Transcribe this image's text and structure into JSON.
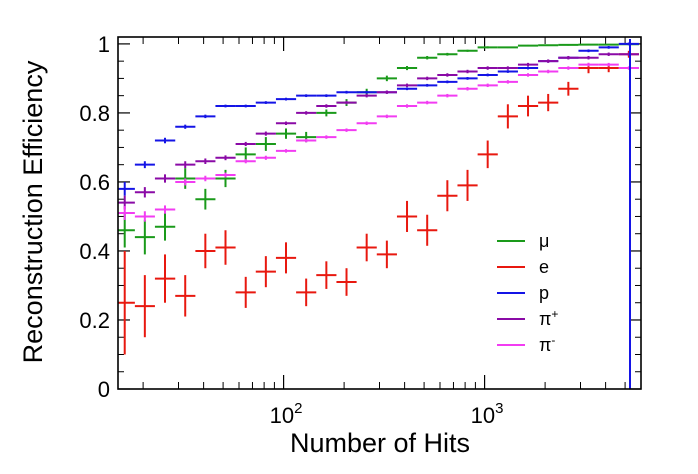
{
  "chart_data": {
    "type": "scatter",
    "title": "",
    "xlabel": "Number of Hits",
    "ylabel": "Reconstruction Efficiency",
    "xscale": "log",
    "xlim": [
      15,
      6000
    ],
    "ylim": [
      0,
      1.02
    ],
    "y_ticks": [
      0,
      0.2,
      0.4,
      0.6,
      0.8,
      1
    ],
    "y_tick_labels": [
      "0",
      "0.2",
      "0.4",
      "0.6",
      "0.8",
      "1"
    ],
    "x_ticks": [
      100,
      1000
    ],
    "x_tick_labels": [
      {
        "base": "10",
        "exp": "2"
      },
      {
        "base": "10",
        "exp": "3"
      }
    ],
    "grid": false,
    "legend_position": "bottom-right",
    "x_centers": [
      16.2,
      20.4,
      25.7,
      32.4,
      40.8,
      51.4,
      64.8,
      81.6,
      102.8,
      129.5,
      163.2,
      205.6,
      259.0,
      326.4,
      411.2,
      518.1,
      652.7,
      822.3,
      1036.0,
      1305.3,
      1644.5,
      2071.9,
      2610.4,
      3288.8,
      4143.5,
      5220.3
    ],
    "x_low": [
      14.4,
      18.2,
      22.9,
      28.9,
      36.4,
      45.8,
      57.7,
      72.7,
      91.6,
      115.4,
      145.4,
      183.2,
      230.8,
      290.8,
      366.4,
      461.6,
      581.6,
      732.8,
      923.2,
      1163.2,
      1465.5,
      1846.3,
      2326.3,
      2930.9,
      3692.7,
      4652.5
    ],
    "x_high": [
      18.2,
      22.9,
      28.9,
      36.4,
      45.8,
      57.7,
      72.7,
      91.6,
      115.4,
      145.4,
      183.2,
      230.8,
      290.8,
      366.4,
      461.6,
      581.6,
      732.8,
      923.2,
      1163.2,
      1465.5,
      1846.3,
      2326.3,
      2930.9,
      3692.7,
      4652.5,
      5861.7
    ],
    "series": [
      {
        "name": "μ",
        "color": "#1a9a1a",
        "values": [
          0.46,
          0.44,
          0.47,
          0.61,
          0.55,
          0.61,
          0.68,
          0.71,
          0.74,
          0.73,
          0.8,
          0.83,
          0.86,
          0.9,
          0.93,
          0.96,
          0.97,
          0.98,
          0.99,
          0.99,
          0.995,
          0.996,
          0.997,
          0.998,
          0.998,
          0.999
        ],
        "errors": [
          0.05,
          0.05,
          0.04,
          0.03,
          0.03,
          0.025,
          0.02,
          0.02,
          0.015,
          0.015,
          0.01,
          0.01,
          0.01,
          0.008,
          0.006,
          0.005,
          0.004,
          0.003,
          0.003,
          0.002,
          0.002,
          0.002,
          0.002,
          0.002,
          0.002,
          0.002
        ]
      },
      {
        "name": "e",
        "color": "#e8180f",
        "values": [
          0.25,
          0.24,
          0.32,
          0.27,
          0.4,
          0.41,
          0.28,
          0.34,
          0.38,
          0.28,
          0.33,
          0.31,
          0.41,
          0.39,
          0.5,
          0.46,
          0.56,
          0.59,
          0.68,
          0.79,
          0.82,
          0.83,
          0.87,
          0.93,
          0.93,
          0.97
        ],
        "errors": [
          0.15,
          0.09,
          0.07,
          0.06,
          0.05,
          0.05,
          0.045,
          0.045,
          0.045,
          0.04,
          0.04,
          0.04,
          0.04,
          0.04,
          0.045,
          0.045,
          0.045,
          0.045,
          0.04,
          0.035,
          0.03,
          0.025,
          0.02,
          0.015,
          0.012,
          0.01
        ]
      },
      {
        "name": "p",
        "color": "#1414e6",
        "values": [
          0.58,
          0.65,
          0.72,
          0.76,
          0.79,
          0.82,
          0.82,
          0.83,
          0.84,
          0.85,
          0.85,
          0.86,
          0.86,
          0.86,
          0.87,
          0.88,
          0.89,
          0.9,
          0.91,
          0.92,
          0.93,
          0.95,
          0.96,
          0.98,
          0.99,
          1.0
        ],
        "errors": [
          0.02,
          0.01,
          0.008,
          0.006,
          0.005,
          0.004,
          0.004,
          0.004,
          0.004,
          0.004,
          0.004,
          0.004,
          0.004,
          0.004,
          0.004,
          0.004,
          0.004,
          0.004,
          0.004,
          0.004,
          0.004,
          0.004,
          0.004,
          0.004,
          0.004,
          0.004
        ]
      },
      {
        "name": "π+",
        "color": "#8a0aa6",
        "values": [
          0.54,
          0.57,
          0.61,
          0.65,
          0.66,
          0.67,
          0.71,
          0.74,
          0.77,
          0.8,
          0.82,
          0.83,
          0.85,
          0.86,
          0.88,
          0.9,
          0.91,
          0.92,
          0.93,
          0.93,
          0.94,
          0.95,
          0.96,
          0.96,
          0.97,
          0.97
        ],
        "errors": [
          0.02,
          0.015,
          0.012,
          0.01,
          0.008,
          0.007,
          0.006,
          0.006,
          0.005,
          0.005,
          0.005,
          0.005,
          0.005,
          0.005,
          0.005,
          0.005,
          0.005,
          0.005,
          0.005,
          0.005,
          0.005,
          0.005,
          0.005,
          0.005,
          0.005,
          0.005
        ]
      },
      {
        "name": "π-",
        "color": "#f23cf2",
        "values": [
          0.51,
          0.5,
          0.52,
          0.6,
          0.61,
          0.62,
          0.66,
          0.67,
          0.69,
          0.72,
          0.73,
          0.75,
          0.77,
          0.79,
          0.82,
          0.83,
          0.85,
          0.87,
          0.88,
          0.89,
          0.91,
          0.92,
          0.93,
          0.94,
          0.94,
          0.93
        ],
        "errors": [
          0.02,
          0.015,
          0.012,
          0.01,
          0.008,
          0.007,
          0.006,
          0.006,
          0.005,
          0.005,
          0.005,
          0.005,
          0.005,
          0.005,
          0.005,
          0.005,
          0.005,
          0.005,
          0.005,
          0.005,
          0.005,
          0.005,
          0.005,
          0.005,
          0.005,
          0.005
        ]
      }
    ],
    "legend": [
      {
        "label": "μ",
        "sup": "",
        "color": "#1a9a1a"
      },
      {
        "label": "e",
        "sup": "",
        "color": "#e8180f"
      },
      {
        "label": "p",
        "sup": "",
        "color": "#1414e6"
      },
      {
        "label": "π",
        "sup": "+",
        "color": "#8a0aa6"
      },
      {
        "label": "π",
        "sup": "-",
        "color": "#f23cf2"
      }
    ]
  }
}
